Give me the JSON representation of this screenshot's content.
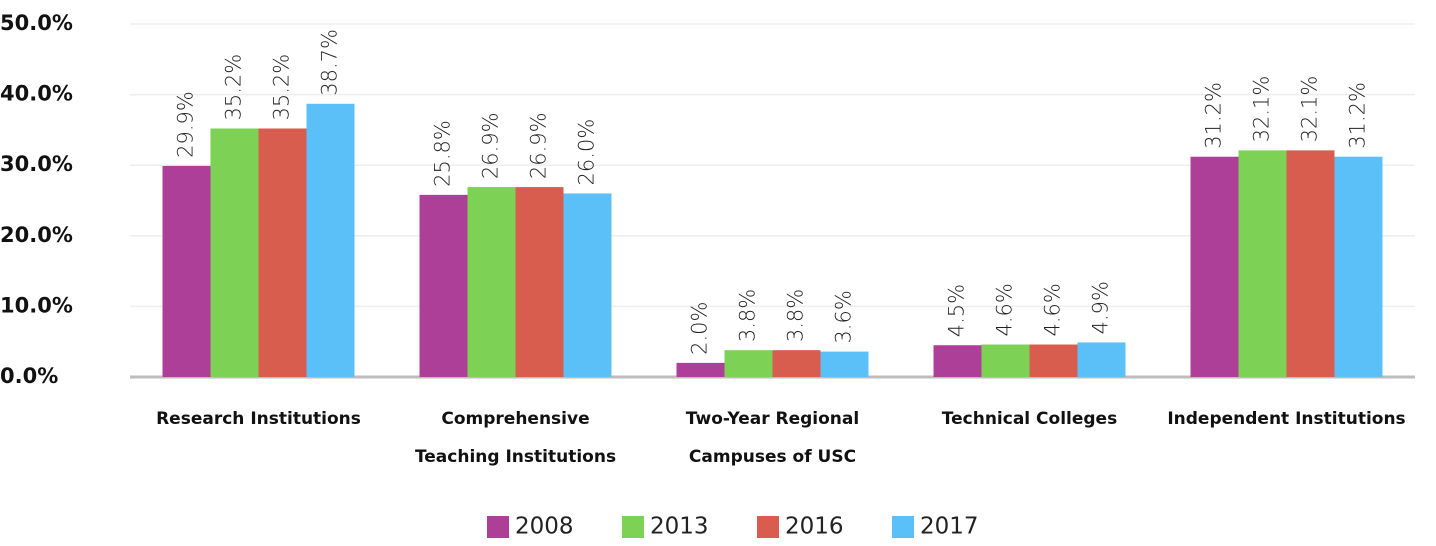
{
  "chart_data": {
    "type": "bar",
    "categories": [
      "Research Institutions",
      "Comprehensive\nTeaching Institutions",
      "Two-Year Regional\nCampuses of USC",
      "Technical Colleges",
      "Independent Institutions"
    ],
    "series": [
      {
        "name": "2008",
        "color": "#ae3f98",
        "values": [
          29.9,
          25.8,
          2.0,
          4.5,
          31.2
        ],
        "value_labels": [
          "29.9%",
          "25.8%",
          "2.0%",
          "4.5%",
          "31.2%"
        ]
      },
      {
        "name": "2013",
        "color": "#7dd155",
        "values": [
          35.2,
          26.9,
          3.8,
          4.6,
          32.1
        ],
        "value_labels": [
          "35.2%",
          "26.9%",
          "3.8%",
          "4.6%",
          "32.1%"
        ]
      },
      {
        "name": "2016",
        "color": "#d95d4e",
        "values": [
          35.2,
          26.9,
          3.8,
          4.6,
          32.1
        ],
        "value_labels": [
          "35.2%",
          "26.9%",
          "3.8%",
          "4.6%",
          "32.1%"
        ]
      },
      {
        "name": "2017",
        "color": "#5bc0f8",
        "values": [
          38.7,
          26.0,
          3.6,
          4.9,
          31.2
        ],
        "value_labels": [
          "38.7%",
          "26.0%",
          "3.6%",
          "4.9%",
          "31.2%"
        ]
      }
    ],
    "ylim": [
      0,
      50
    ],
    "yticks": [
      {
        "value": 0,
        "label": "0.0%"
      },
      {
        "value": 10,
        "label": "10.0%"
      },
      {
        "value": 20,
        "label": "20.0%"
      },
      {
        "value": 30,
        "label": "30.0%"
      },
      {
        "value": 40,
        "label": "40.0%"
      },
      {
        "value": 50,
        "label": "50.0%"
      }
    ],
    "grid": true,
    "legend": "bottom"
  }
}
